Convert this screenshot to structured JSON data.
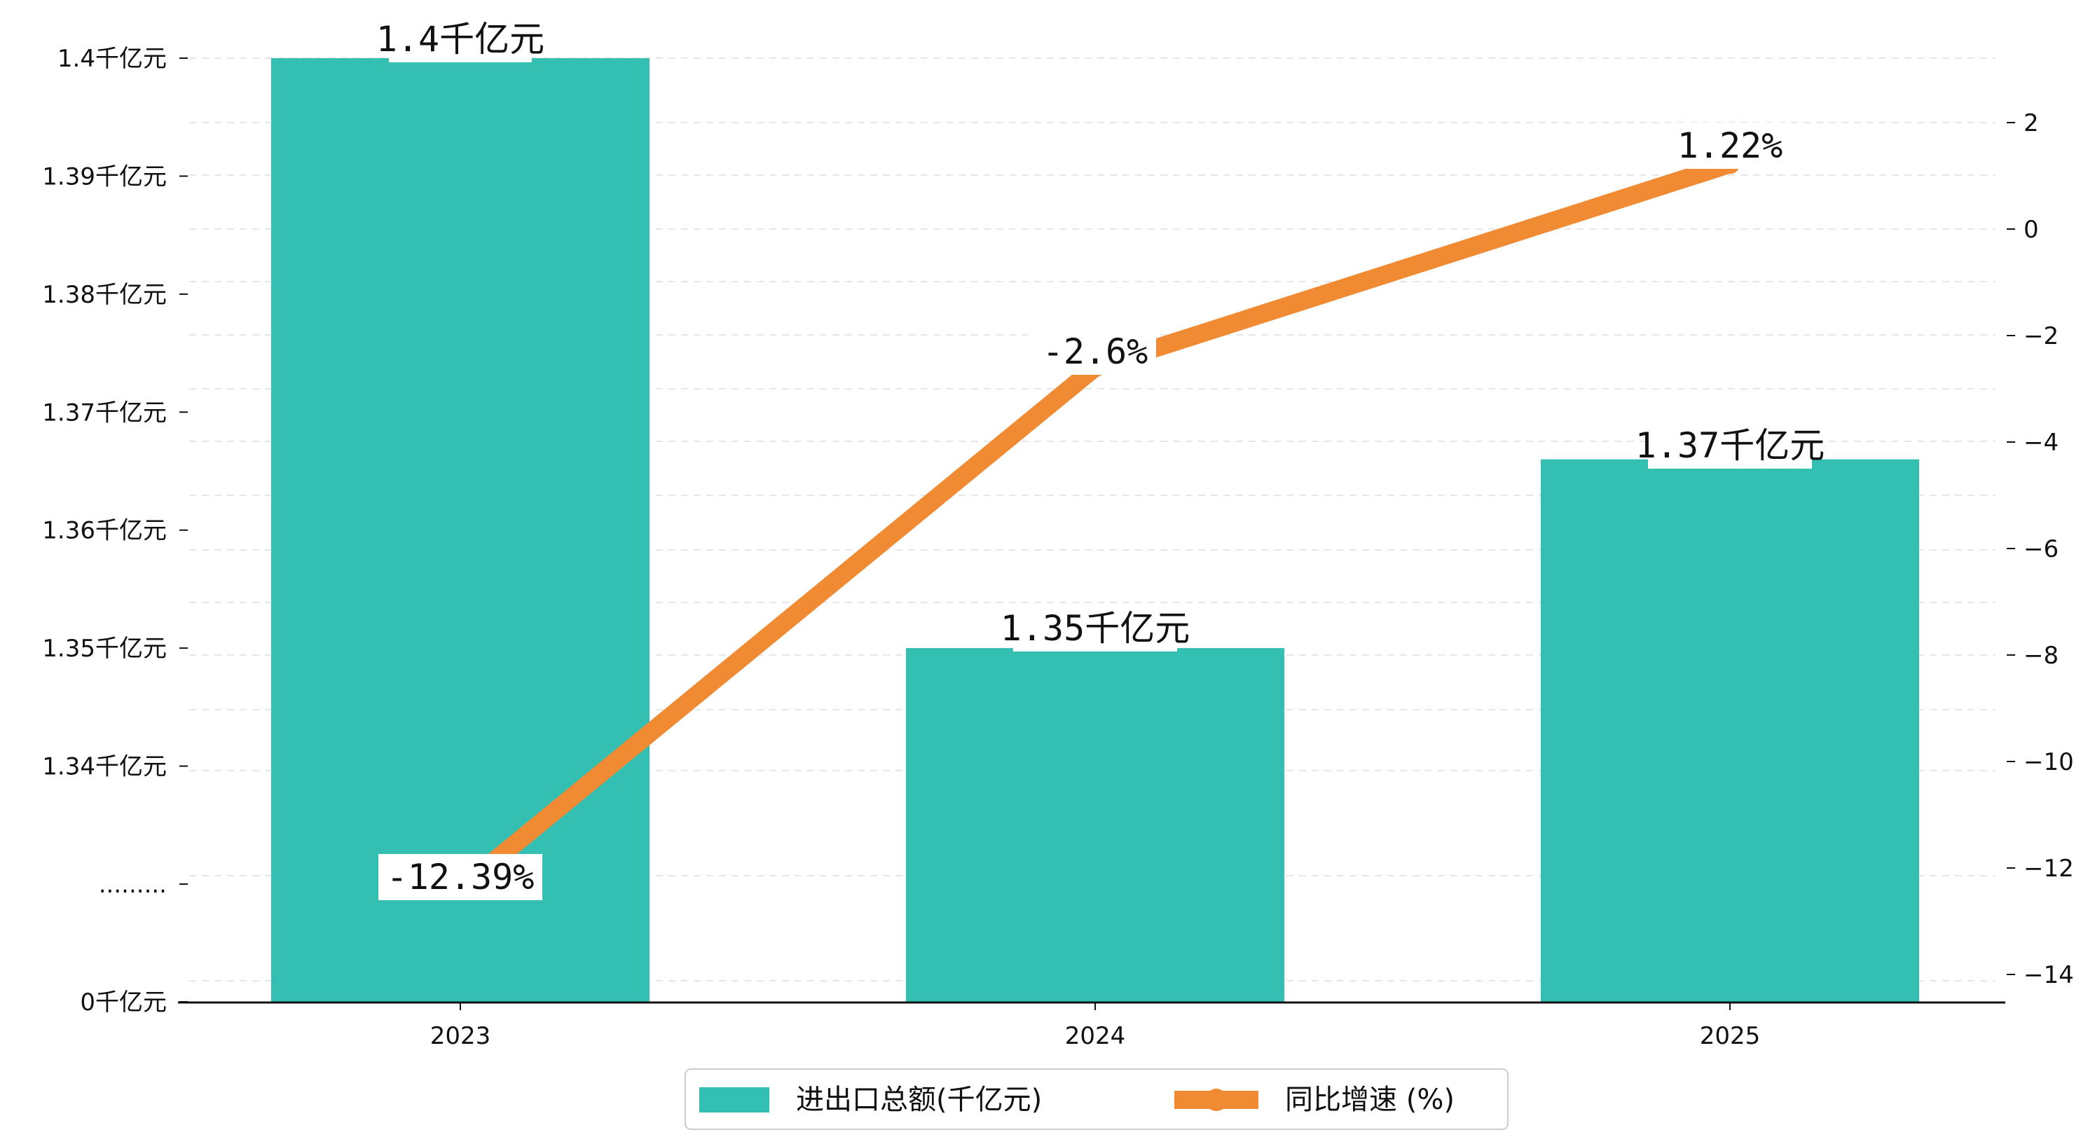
{
  "chart_data": {
    "type": "bar",
    "categories": [
      "2023",
      "2024",
      "2025"
    ],
    "series": [
      {
        "name": "进出口总额(千亿元)",
        "type": "bar",
        "axis": "left",
        "values": [
          1.4,
          1.35,
          1.366
        ],
        "labels": [
          "1.4千亿元",
          "1.35千亿元",
          "1.37千亿元"
        ],
        "color": "#33BFB2"
      },
      {
        "name": "同比增速 (%)",
        "type": "line",
        "axis": "right",
        "values": [
          -12.39,
          -2.6,
          1.22
        ],
        "labels": [
          "-12.39%",
          "-2.6%",
          "1.22%"
        ],
        "color": "#F08A33"
      }
    ],
    "y_left": {
      "ticks": [
        {
          "value": 0,
          "label": "0千亿元"
        },
        {
          "value": 1.33,
          "label": "........."
        },
        {
          "value": 1.34,
          "label": "1.34千亿元"
        },
        {
          "value": 1.35,
          "label": "1.35千亿元"
        },
        {
          "value": 1.36,
          "label": "1.36千亿元"
        },
        {
          "value": 1.37,
          "label": "1.37千亿元"
        },
        {
          "value": 1.38,
          "label": "1.38千亿元"
        },
        {
          "value": 1.39,
          "label": "1.39千亿元"
        },
        {
          "value": 1.4,
          "label": "1.4千亿元"
        }
      ],
      "axis_break": true
    },
    "y_right": {
      "ylim": [
        -14.5,
        3.1
      ],
      "ticks": [
        2,
        0,
        -2,
        -4,
        -6,
        -8,
        -10,
        -12,
        -14
      ],
      "tick_labels": [
        "2",
        "0",
        "−2",
        "−4",
        "−6",
        "−8",
        "−10",
        "−12",
        "−14"
      ]
    },
    "grid": "horizontal-dashed",
    "legend": "bottom-center"
  }
}
